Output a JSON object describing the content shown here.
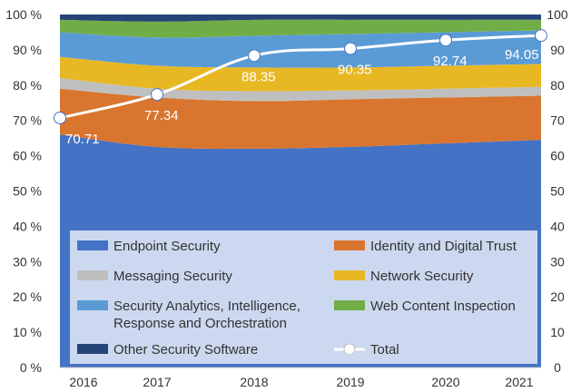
{
  "chart_data": {
    "type": "area",
    "stacked": true,
    "categories": [
      "2016",
      "2017",
      "2018",
      "2019",
      "2020",
      "2021"
    ],
    "y_left": {
      "min": 0,
      "max": 100,
      "step": 10,
      "tick_labels": [
        "0 %",
        "10 %",
        "20 %",
        "30 %",
        "40 %",
        "50 %",
        "60 %",
        "70 %",
        "80 %",
        "90 %",
        "100 %"
      ]
    },
    "y_right": {
      "min": 0,
      "max": 100,
      "step": 10,
      "tick_labels": [
        "0",
        "10",
        "20",
        "30",
        "40",
        "50",
        "60",
        "70",
        "80",
        "90",
        "100"
      ]
    },
    "series": [
      {
        "name": "Endpoint Security",
        "color": "#4472C4",
        "values": [
          66.0,
          62.5,
          62.0,
          62.5,
          63.5,
          64.5
        ]
      },
      {
        "name": "Identity and Digital Trust",
        "color": "#D9752E",
        "values": [
          13.0,
          14.0,
          13.5,
          13.5,
          13.0,
          12.5
        ]
      },
      {
        "name": "Messaging Security",
        "color": "#BFBFBF",
        "values": [
          3.0,
          2.5,
          2.8,
          2.5,
          2.5,
          2.5
        ]
      },
      {
        "name": "Network Security",
        "color": "#E8B824",
        "values": [
          6.0,
          6.5,
          6.7,
          6.5,
          6.5,
          6.5
        ]
      },
      {
        "name": "Security Analytics, Intelligence, Response and Orchestration",
        "color": "#5B9BD5",
        "values": [
          7.0,
          8.0,
          9.0,
          9.5,
          9.5,
          9.5
        ]
      },
      {
        "name": "Web Content Inspection",
        "color": "#70AD47",
        "values": [
          3.5,
          4.5,
          4.5,
          4.0,
          3.5,
          3.0
        ]
      },
      {
        "name": "Other Security Software",
        "color": "#264478",
        "values": [
          1.5,
          2.0,
          1.5,
          1.5,
          1.5,
          1.5
        ]
      }
    ],
    "line": {
      "name": "Total",
      "color": "#FFFFFF",
      "axis": "right",
      "values": [
        70.71,
        77.34,
        88.35,
        90.35,
        92.74,
        94.05
      ],
      "labels": [
        "70.71",
        "77.34",
        "88.35",
        "90.35",
        "92.74",
        "94.05"
      ]
    },
    "legend_position": "inside-bottom",
    "grid": false
  }
}
